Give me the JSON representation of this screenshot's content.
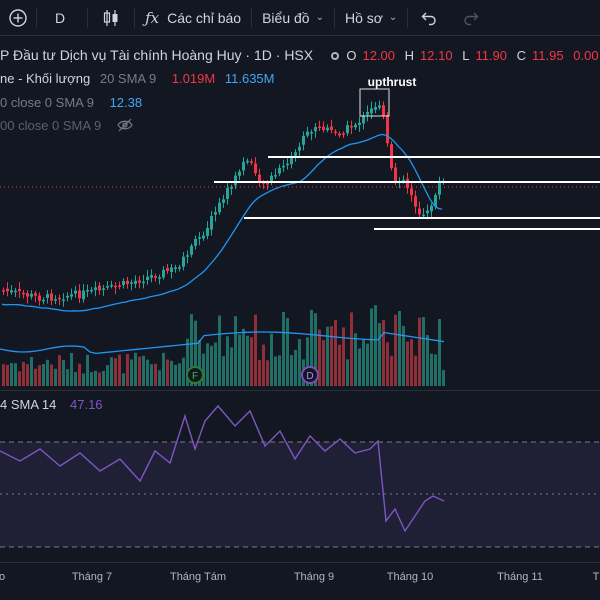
{
  "toolbar": {
    "interval": "D",
    "indicators_label": "Các chỉ báo",
    "chart_type_label": "Biểu đồ",
    "profile_label": "Hồ sơ"
  },
  "legend": {
    "title": "P Đầu tư Dịch vụ Tài chính Hoàng Huy · 1D · HSX",
    "o_label": "O",
    "o_value": "12.00",
    "h_label": "H",
    "h_value": "12.10",
    "l_label": "L",
    "l_value": "11.90",
    "c_label": "C",
    "c_value": "11.95",
    "change": "0.00 (",
    "volume_name": "ne - Khối lượng",
    "volume_params": "20 SMA 9",
    "volume_value": "1.019M",
    "volume_sma": "11.635M",
    "sma_params": "0 close 0 SMA 9",
    "sma_value": "12.38",
    "hidden_params": "00 close 0 SMA 9",
    "rsi_params": "4 SMA 14",
    "rsi_value": "47.16"
  },
  "annotations": {
    "upthrust": "upthrust",
    "marker_f": "F",
    "marker_d": "D"
  },
  "time_axis": {
    "labels": [
      "o",
      "Tháng 7",
      "Tháng Tám",
      "Tháng 9",
      "Tháng 10",
      "Tháng 11",
      "T"
    ]
  },
  "colors": {
    "background": "#131722",
    "up": "#26a69a",
    "down": "#f23645",
    "ma": "#2196f3",
    "rsi": "#7e57c2",
    "marker_f": "#2e7d32",
    "marker_d": "#6a3a9a"
  },
  "icons": [
    "add-icon",
    "compare-icon",
    "candle-icon",
    "fx-icon",
    "undo-icon",
    "redo-icon",
    "eye-slash-icon",
    "dropdown-chevron-icon"
  ]
}
